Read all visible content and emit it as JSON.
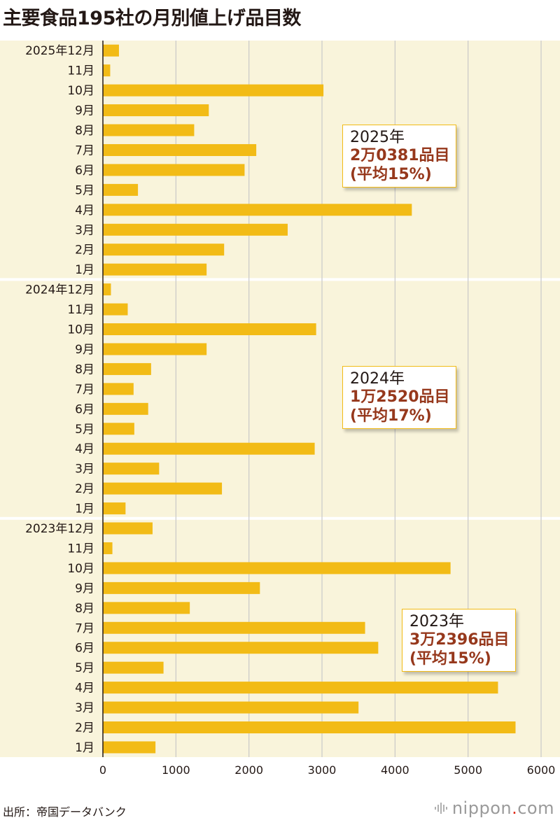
{
  "title": "主要食品195社の月別値上げ品目数",
  "source": "出所：帝国データバンク",
  "brand": {
    "name": "nippon",
    "dot": ".",
    "suffix": "com",
    "icon": "nippon-com-wave-icon"
  },
  "colors": {
    "bar": "#f2bb16",
    "band": "#f9f4db",
    "separator": "#ffffff",
    "grid": "#c8c8c8",
    "callout_text": "#96381c",
    "callout_border": "#f2bb16"
  },
  "callouts": [
    {
      "year": "2025年",
      "count": "2万0381品目",
      "avg": "(平均15%)"
    },
    {
      "year": "2024年",
      "count": "1万2520品目",
      "avg": "(平均17%)"
    },
    {
      "year": "2023年",
      "count": "3万2396品目",
      "avg": "(平均15%)"
    }
  ],
  "chart_data": {
    "type": "bar",
    "orientation": "horizontal",
    "title": "主要食品195社の月別値上げ品目数",
    "xlim": [
      0,
      6000
    ],
    "xticks": [
      0,
      1000,
      2000,
      3000,
      4000,
      5000,
      6000
    ],
    "grid": "vertical",
    "categories": [
      "2025年12月",
      "11月",
      "10月",
      "9月",
      "8月",
      "7月",
      "6月",
      "5月",
      "4月",
      "3月",
      "2月",
      "1月",
      "2024年12月",
      "11月",
      "10月",
      "9月",
      "8月",
      "7月",
      "6月",
      "5月",
      "4月",
      "3月",
      "2月",
      "1月",
      "2023年12月",
      "11月",
      "10月",
      "9月",
      "8月",
      "7月",
      "6月",
      "5月",
      "4月",
      "3月",
      "2月",
      "1月"
    ],
    "values": [
      220,
      100,
      3020,
      1450,
      1250,
      2100,
      1940,
      480,
      4230,
      2530,
      1660,
      1420,
      110,
      340,
      2920,
      1420,
      660,
      420,
      620,
      430,
      2900,
      770,
      1630,
      310,
      680,
      130,
      4760,
      2150,
      1190,
      3590,
      3770,
      830,
      5410,
      3500,
      5650,
      720
    ],
    "groups": [
      "2025年",
      "2024年",
      "2023年"
    ]
  }
}
